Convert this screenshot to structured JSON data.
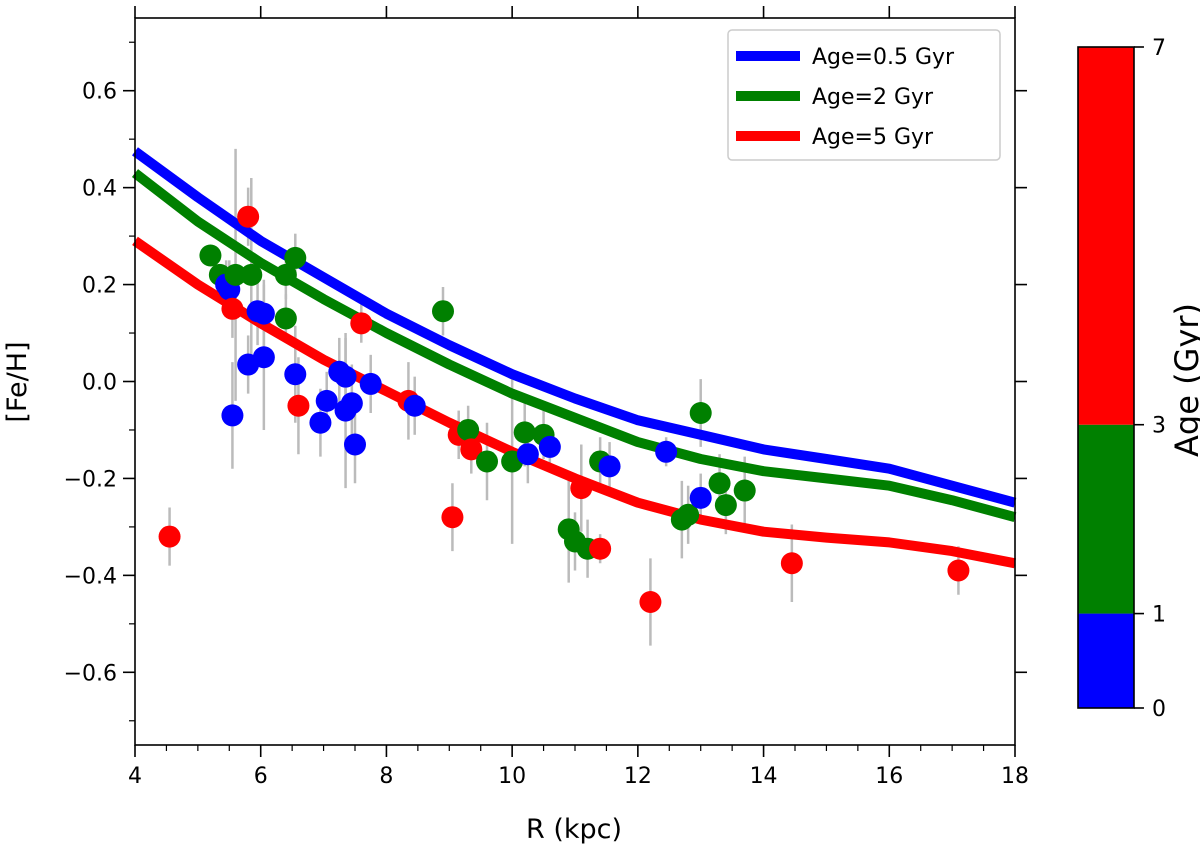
{
  "chart_data": {
    "type": "scatter",
    "xlabel": "R (kpc)",
    "ylabel": "[Fe/H]",
    "xlim": [
      4,
      18
    ],
    "ylim": [
      -0.75,
      0.75
    ],
    "x_ticks": [
      4,
      6,
      8,
      10,
      12,
      14,
      16,
      18
    ],
    "x_tick_labels": [
      "4",
      "6",
      "8",
      "10",
      "12",
      "14",
      "16",
      "18"
    ],
    "y_ticks": [
      -0.6,
      -0.4,
      -0.2,
      0.0,
      0.2,
      0.4,
      0.6
    ],
    "y_tick_labels": [
      "−0.6",
      "−0.4",
      "−0.2",
      "0.0",
      "0.2",
      "0.4",
      "0.6"
    ],
    "legend_position": "top-right",
    "model_lines": [
      {
        "name": "Age=0.5 Gyr",
        "color": "#0000ff",
        "x": [
          4,
          5,
          6,
          7,
          8,
          9,
          10,
          11,
          12,
          13,
          14,
          15,
          16,
          17,
          18
        ],
        "y": [
          0.475,
          0.38,
          0.29,
          0.215,
          0.14,
          0.075,
          0.015,
          -0.035,
          -0.08,
          -0.11,
          -0.14,
          -0.16,
          -0.18,
          -0.215,
          -0.25
        ]
      },
      {
        "name": "Age=2 Gyr",
        "color": "#008000",
        "x": [
          4,
          5,
          6,
          7,
          8,
          9,
          10,
          11,
          12,
          13,
          14,
          15,
          16,
          17,
          18
        ],
        "y": [
          0.43,
          0.33,
          0.245,
          0.17,
          0.1,
          0.035,
          -0.025,
          -0.075,
          -0.125,
          -0.16,
          -0.185,
          -0.2,
          -0.215,
          -0.245,
          -0.28
        ]
      },
      {
        "name": "Age=5 Gyr",
        "color": "#ff0000",
        "x": [
          4,
          5,
          6,
          7,
          8,
          9,
          10,
          11,
          12,
          13,
          14,
          15,
          16,
          17,
          18
        ],
        "y": [
          0.29,
          0.2,
          0.12,
          0.045,
          -0.02,
          -0.085,
          -0.145,
          -0.2,
          -0.25,
          -0.285,
          -0.31,
          -0.322,
          -0.332,
          -0.35,
          -0.375
        ]
      }
    ],
    "points": [
      {
        "x": 4.55,
        "y": -0.32,
        "err": 0.06,
        "age": "red"
      },
      {
        "x": 5.2,
        "y": 0.26,
        "err": 0.0,
        "age": "green"
      },
      {
        "x": 5.35,
        "y": 0.22,
        "err": 0.0,
        "age": "green"
      },
      {
        "x": 5.45,
        "y": 0.2,
        "err": 0.05,
        "age": "blue"
      },
      {
        "x": 5.5,
        "y": 0.19,
        "err": 0.06,
        "age": "blue"
      },
      {
        "x": 5.55,
        "y": 0.15,
        "err": 0.06,
        "age": "red"
      },
      {
        "x": 5.6,
        "y": 0.22,
        "err": 0.26,
        "age": "green"
      },
      {
        "x": 5.55,
        "y": -0.07,
        "err": 0.11,
        "age": "blue"
      },
      {
        "x": 5.8,
        "y": 0.34,
        "err": 0.06,
        "age": "red"
      },
      {
        "x": 5.85,
        "y": 0.22,
        "err": 0.2,
        "age": "green"
      },
      {
        "x": 5.8,
        "y": 0.035,
        "err": 0.06,
        "age": "blue"
      },
      {
        "x": 5.95,
        "y": 0.145,
        "err": 0.07,
        "age": "blue"
      },
      {
        "x": 6.05,
        "y": 0.14,
        "err": 0.07,
        "age": "blue"
      },
      {
        "x": 6.05,
        "y": 0.05,
        "err": 0.15,
        "age": "blue"
      },
      {
        "x": 6.4,
        "y": 0.22,
        "err": 0.05,
        "age": "green"
      },
      {
        "x": 6.4,
        "y": 0.13,
        "err": 0.05,
        "age": "green"
      },
      {
        "x": 6.55,
        "y": 0.255,
        "err": 0.05,
        "age": "green"
      },
      {
        "x": 6.55,
        "y": 0.015,
        "err": 0.1,
        "age": "blue"
      },
      {
        "x": 6.6,
        "y": -0.05,
        "err": 0.1,
        "age": "red"
      },
      {
        "x": 6.95,
        "y": -0.085,
        "err": 0.07,
        "age": "blue"
      },
      {
        "x": 7.05,
        "y": -0.04,
        "err": 0.06,
        "age": "blue"
      },
      {
        "x": 7.25,
        "y": 0.02,
        "err": 0.07,
        "age": "blue"
      },
      {
        "x": 7.35,
        "y": 0.01,
        "err": 0.08,
        "age": "blue"
      },
      {
        "x": 7.35,
        "y": -0.06,
        "err": 0.16,
        "age": "blue"
      },
      {
        "x": 7.45,
        "y": -0.045,
        "err": 0.08,
        "age": "blue"
      },
      {
        "x": 7.5,
        "y": -0.13,
        "err": 0.08,
        "age": "blue"
      },
      {
        "x": 7.6,
        "y": 0.12,
        "err": 0.04,
        "age": "red"
      },
      {
        "x": 7.75,
        "y": -0.005,
        "err": 0.06,
        "age": "blue"
      },
      {
        "x": 8.35,
        "y": -0.04,
        "err": 0.08,
        "age": "red"
      },
      {
        "x": 8.45,
        "y": -0.05,
        "err": 0.06,
        "age": "blue"
      },
      {
        "x": 8.9,
        "y": 0.145,
        "err": 0.05,
        "age": "green"
      },
      {
        "x": 9.05,
        "y": -0.28,
        "err": 0.07,
        "age": "red"
      },
      {
        "x": 9.15,
        "y": -0.11,
        "err": 0.05,
        "age": "red"
      },
      {
        "x": 9.3,
        "y": -0.1,
        "err": 0.05,
        "age": "green"
      },
      {
        "x": 9.35,
        "y": -0.14,
        "err": 0.05,
        "age": "red"
      },
      {
        "x": 9.6,
        "y": -0.165,
        "err": 0.08,
        "age": "green"
      },
      {
        "x": 10.0,
        "y": -0.165,
        "err": 0.17,
        "age": "green"
      },
      {
        "x": 10.2,
        "y": -0.105,
        "err": 0.07,
        "age": "green"
      },
      {
        "x": 10.25,
        "y": -0.15,
        "err": 0.06,
        "age": "blue"
      },
      {
        "x": 10.5,
        "y": -0.11,
        "err": 0.05,
        "age": "green"
      },
      {
        "x": 10.6,
        "y": -0.135,
        "err": 0.04,
        "age": "blue"
      },
      {
        "x": 10.9,
        "y": -0.305,
        "err": 0.11,
        "age": "green"
      },
      {
        "x": 11.0,
        "y": -0.33,
        "err": 0.06,
        "age": "green"
      },
      {
        "x": 11.1,
        "y": -0.22,
        "err": 0.09,
        "age": "red"
      },
      {
        "x": 11.2,
        "y": -0.345,
        "err": 0.06,
        "age": "green"
      },
      {
        "x": 11.4,
        "y": -0.165,
        "err": 0.05,
        "age": "green"
      },
      {
        "x": 11.4,
        "y": -0.345,
        "err": 0.03,
        "age": "red"
      },
      {
        "x": 11.55,
        "y": -0.175,
        "err": 0.05,
        "age": "blue"
      },
      {
        "x": 12.2,
        "y": -0.455,
        "err": 0.09,
        "age": "red"
      },
      {
        "x": 12.45,
        "y": -0.145,
        "err": 0.03,
        "age": "blue"
      },
      {
        "x": 12.7,
        "y": -0.285,
        "err": 0.08,
        "age": "green"
      },
      {
        "x": 12.8,
        "y": -0.275,
        "err": 0.06,
        "age": "green"
      },
      {
        "x": 13.0,
        "y": -0.065,
        "err": 0.07,
        "age": "green"
      },
      {
        "x": 13.0,
        "y": -0.24,
        "err": 0.05,
        "age": "blue"
      },
      {
        "x": 13.3,
        "y": -0.21,
        "err": 0.06,
        "age": "green"
      },
      {
        "x": 13.4,
        "y": -0.255,
        "err": 0.06,
        "age": "green"
      },
      {
        "x": 13.7,
        "y": -0.225,
        "err": 0.07,
        "age": "green"
      },
      {
        "x": 14.45,
        "y": -0.375,
        "err": 0.08,
        "age": "red"
      },
      {
        "x": 17.1,
        "y": -0.39,
        "err": 0.05,
        "age": "red"
      }
    ],
    "colorbar": {
      "label": "Age (Gyr)",
      "range": [
        0,
        7
      ],
      "segments": [
        {
          "from": 0,
          "to": 1,
          "color": "#0000ff"
        },
        {
          "from": 1,
          "to": 3,
          "color": "#008000"
        },
        {
          "from": 3,
          "to": 7,
          "color": "#ff0000"
        }
      ],
      "ticks": [
        0,
        1,
        3,
        7
      ],
      "tick_labels": [
        "0",
        "1",
        "3",
        "7"
      ]
    },
    "errorbar_color": "#bbbbbb"
  }
}
